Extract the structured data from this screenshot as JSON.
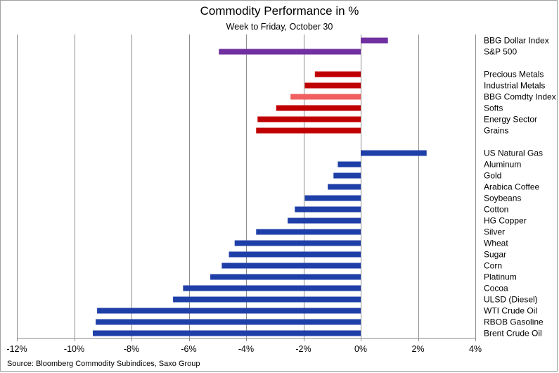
{
  "chart_data": {
    "type": "bar",
    "orientation": "horizontal",
    "title": "Commodity Performance in %",
    "subtitle": "Week to Friday, October 30",
    "source": "Source: Bloomberg Commodity Subindices, Saxo Group",
    "xlim": [
      -12,
      4
    ],
    "xticks": [
      -12,
      -10,
      -8,
      -6,
      -4,
      -2,
      0,
      2,
      4
    ],
    "xtick_labels": [
      "-12%",
      "-10%",
      "-8%",
      "-6%",
      "-4%",
      "-2%",
      "0%",
      "2%",
      "4%"
    ],
    "grid": "vertical",
    "labels_position": "right",
    "bars": [
      {
        "label": "BBG Dollar Index",
        "value": 0.95,
        "color": "#7030a0",
        "slot": 0
      },
      {
        "label": "S&P 500",
        "value": -4.95,
        "color": "#7030a0",
        "slot": 1
      },
      {
        "label": "Precious Metals",
        "value": -1.6,
        "color": "#c00000",
        "slot": 3
      },
      {
        "label": "Industrial Metals",
        "value": -1.95,
        "color": "#c00000",
        "slot": 4
      },
      {
        "label": "BBG Comdty Index",
        "value": -2.45,
        "color": "#f06060",
        "slot": 5
      },
      {
        "label": "Softs",
        "value": -2.95,
        "color": "#c00000",
        "slot": 6
      },
      {
        "label": "Energy Sector",
        "value": -3.6,
        "color": "#c00000",
        "slot": 7
      },
      {
        "label": "Grains",
        "value": -3.65,
        "color": "#c00000",
        "slot": 8
      },
      {
        "label": "US Natural Gas",
        "value": 2.3,
        "color": "#1f3fa8",
        "slot": 10
      },
      {
        "label": "Aluminum",
        "value": -0.8,
        "color": "#1f3fa8",
        "slot": 11
      },
      {
        "label": "Gold",
        "value": -0.95,
        "color": "#1f3fa8",
        "slot": 12
      },
      {
        "label": "Arabica Coffee",
        "value": -1.15,
        "color": "#1f3fa8",
        "slot": 13
      },
      {
        "label": "Soybeans",
        "value": -1.95,
        "color": "#1f3fa8",
        "slot": 14
      },
      {
        "label": "Cotton",
        "value": -2.3,
        "color": "#1f3fa8",
        "slot": 15
      },
      {
        "label": "HG Copper",
        "value": -2.55,
        "color": "#1f3fa8",
        "slot": 16
      },
      {
        "label": "Silver",
        "value": -3.65,
        "color": "#1f3fa8",
        "slot": 17
      },
      {
        "label": "Wheat",
        "value": -4.4,
        "color": "#1f3fa8",
        "slot": 18
      },
      {
        "label": "Sugar",
        "value": -4.6,
        "color": "#1f3fa8",
        "slot": 19
      },
      {
        "label": "Corn",
        "value": -4.85,
        "color": "#1f3fa8",
        "slot": 20
      },
      {
        "label": "Platinum",
        "value": -5.25,
        "color": "#1f3fa8",
        "slot": 21
      },
      {
        "label": "Cocoa",
        "value": -6.2,
        "color": "#1f3fa8",
        "slot": 22
      },
      {
        "label": "ULSD (Diesel)",
        "value": -6.55,
        "color": "#1f3fa8",
        "slot": 23
      },
      {
        "label": "WTI Crude Oil",
        "value": -9.2,
        "color": "#1f3fa8",
        "slot": 24
      },
      {
        "label": "RBOB Gasoline",
        "value": -9.25,
        "color": "#1f3fa8",
        "slot": 25
      },
      {
        "label": "Brent Crude Oil",
        "value": -9.35,
        "color": "#1f3fa8",
        "slot": 26
      }
    ]
  }
}
